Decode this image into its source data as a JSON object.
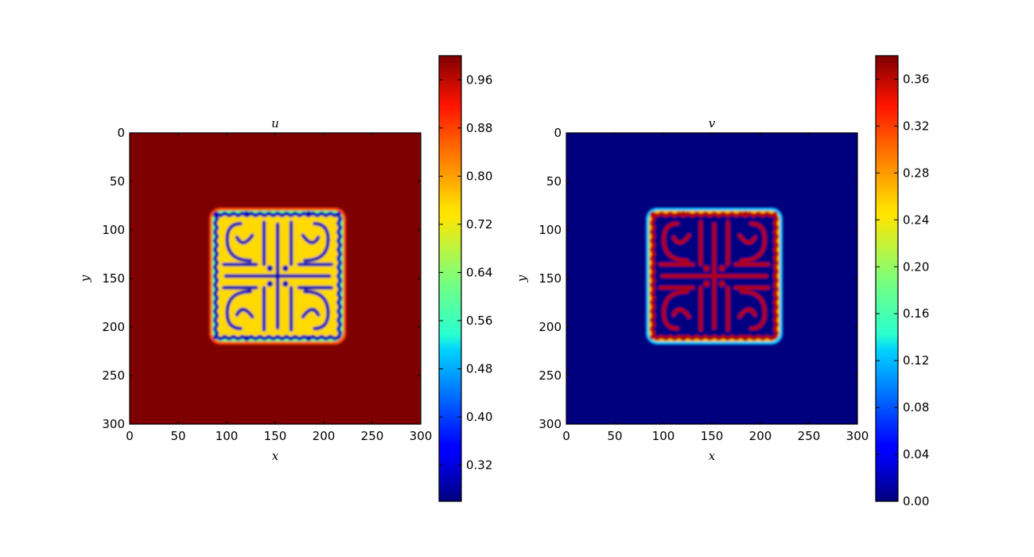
{
  "chart_data": [
    {
      "type": "heatmap",
      "title": "u",
      "xlabel": "x",
      "ylabel": "y",
      "xlim": [
        0,
        300
      ],
      "ylim": [
        300,
        0
      ],
      "x_ticks": [
        "0",
        "50",
        "100",
        "150",
        "200",
        "250",
        "300"
      ],
      "y_ticks": [
        "0",
        "50",
        "100",
        "150",
        "200",
        "250",
        "300"
      ],
      "colorbar": {
        "colormap": "jet",
        "range": [
          0.26,
          1.0
        ],
        "ticks": [
          0.32,
          0.4,
          0.48,
          0.56,
          0.64,
          0.72,
          0.8,
          0.88,
          0.96
        ],
        "tick_labels": [
          "0.32",
          "0.40",
          "0.48",
          "0.56",
          "0.64",
          "0.72",
          "0.80",
          "0.88",
          "0.96"
        ]
      },
      "background_value": 1.0,
      "pattern": {
        "region_x": [
          85,
          220
        ],
        "region_y": [
          80,
          215
        ],
        "spot_value": 0.3,
        "inner_value": 0.75
      }
    },
    {
      "type": "heatmap",
      "title": "v",
      "xlabel": "x",
      "ylabel": "y",
      "xlim": [
        0,
        300
      ],
      "ylim": [
        300,
        0
      ],
      "x_ticks": [
        "0",
        "50",
        "100",
        "150",
        "200",
        "250",
        "300"
      ],
      "y_ticks": [
        "0",
        "50",
        "100",
        "150",
        "200",
        "250",
        "300"
      ],
      "colorbar": {
        "colormap": "jet",
        "range": [
          0.0,
          0.38
        ],
        "ticks": [
          0.0,
          0.04,
          0.08,
          0.12,
          0.16,
          0.2,
          0.24,
          0.28,
          0.32,
          0.36
        ],
        "tick_labels": [
          "0.00",
          "0.04",
          "0.08",
          "0.12",
          "0.16",
          "0.20",
          "0.24",
          "0.28",
          "0.32",
          "0.36"
        ]
      },
      "background_value": 0.0,
      "pattern": {
        "region_x": [
          85,
          220
        ],
        "region_y": [
          80,
          215
        ],
        "spot_value": 0.36,
        "inner_value": 0.0
      }
    }
  ]
}
